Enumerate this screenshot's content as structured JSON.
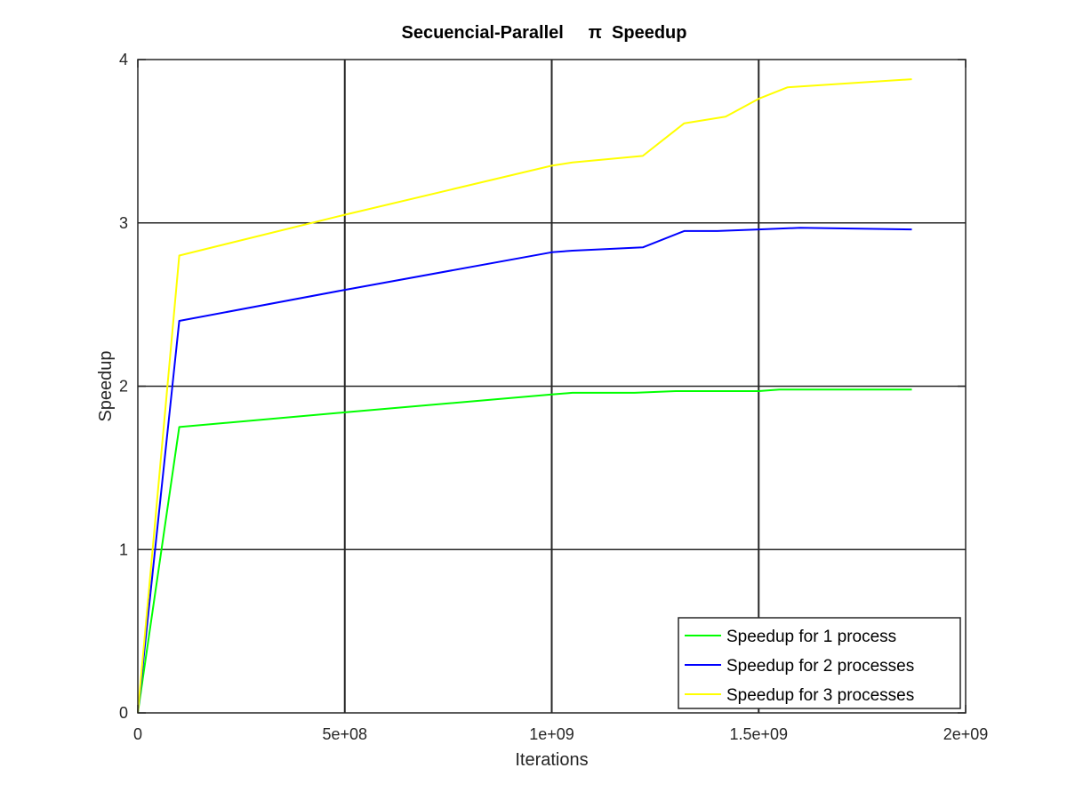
{
  "chart_data": {
    "type": "line",
    "title": "Secuencial-Parallel     π  Speedup",
    "xlabel": "Iterations",
    "ylabel": "Speedup",
    "xlim": [
      0,
      2000000000
    ],
    "ylim": [
      0,
      4
    ],
    "xticks": [
      0,
      500000000,
      1000000000,
      1500000000,
      2000000000
    ],
    "xtick_labels": [
      "0",
      "5e+08",
      "1e+09",
      "1.5e+09",
      "2e+09"
    ],
    "yticks": [
      0,
      1,
      2,
      3,
      4
    ],
    "ytick_labels": [
      "0",
      "1",
      "2",
      "3",
      "4"
    ],
    "grid": true,
    "legend_position": "bottom-right",
    "series": [
      {
        "name": "Speedup for 1 process",
        "color": "#00ff00",
        "x": [
          0,
          100000000,
          500000000,
          1000000000,
          1050000000,
          1200000000,
          1300000000,
          1400000000,
          1500000000,
          1550000000,
          1870000000
        ],
        "y": [
          0,
          1.75,
          1.84,
          1.95,
          1.96,
          1.96,
          1.97,
          1.97,
          1.97,
          1.98,
          1.98
        ]
      },
      {
        "name": "Speedup for 2 processes",
        "color": "#0000ff",
        "x": [
          0,
          100000000,
          500000000,
          1000000000,
          1050000000,
          1220000000,
          1320000000,
          1400000000,
          1500000000,
          1600000000,
          1870000000
        ],
        "y": [
          0,
          2.4,
          2.59,
          2.82,
          2.83,
          2.85,
          2.95,
          2.95,
          2.96,
          2.97,
          2.96
        ]
      },
      {
        "name": "Speedup for 3 processes",
        "color": "#ffff00",
        "x": [
          0,
          100000000,
          500000000,
          1000000000,
          1050000000,
          1220000000,
          1320000000,
          1420000000,
          1500000000,
          1570000000,
          1870000000
        ],
        "y": [
          0,
          2.8,
          3.05,
          3.35,
          3.37,
          3.41,
          3.61,
          3.65,
          3.76,
          3.83,
          3.88
        ]
      }
    ]
  }
}
